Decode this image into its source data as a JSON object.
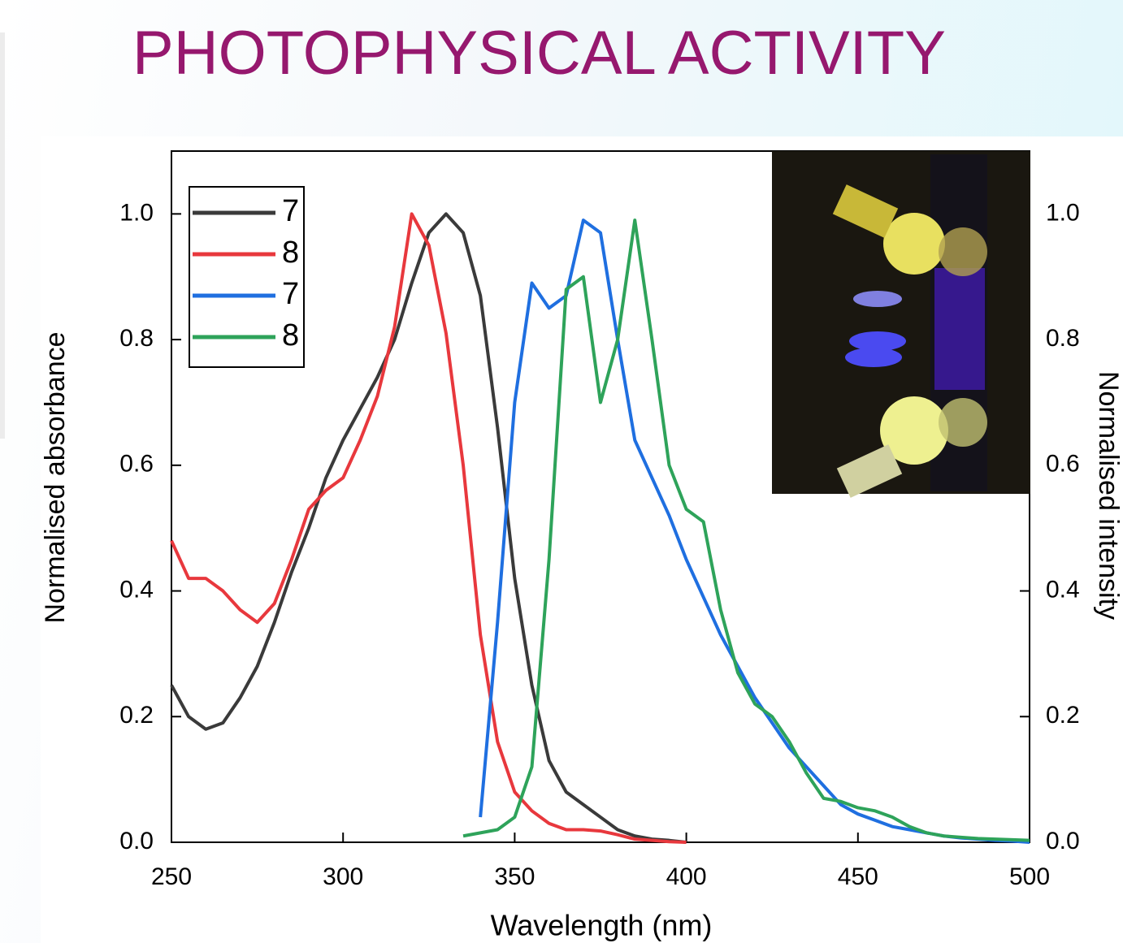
{
  "title": "PHOTOPHYSICAL ACTIVITY",
  "chart_data": {
    "type": "line",
    "xlabel": "Wavelength (nm)",
    "ylabel": "Normalised absorbance",
    "y2label": "Normalised intensity",
    "x": [
      250,
      255,
      260,
      265,
      270,
      275,
      280,
      285,
      290,
      295,
      300,
      305,
      310,
      315,
      320,
      325,
      330,
      335,
      340,
      345,
      350,
      355,
      360,
      365,
      370,
      375,
      380,
      385,
      390,
      395,
      400,
      405,
      410,
      415,
      420,
      425,
      430,
      435,
      440,
      445,
      450,
      455,
      460,
      465,
      470,
      475,
      480,
      485,
      490,
      495,
      500
    ],
    "series": [
      {
        "name": "7",
        "color": "#3a3a3a",
        "values": [
          0.25,
          0.2,
          0.18,
          0.19,
          0.23,
          0.28,
          0.35,
          0.43,
          0.5,
          0.58,
          0.64,
          0.69,
          0.74,
          0.8,
          0.89,
          0.97,
          1.0,
          0.97,
          0.87,
          0.66,
          0.42,
          0.25,
          0.13,
          0.08,
          0.06,
          0.04,
          0.02,
          0.01,
          0.005,
          0.003,
          0.0,
          null,
          null,
          null,
          null,
          null,
          null,
          null,
          null,
          null,
          null,
          null,
          null,
          null,
          null,
          null,
          null,
          null,
          null,
          null,
          null
        ]
      },
      {
        "name": "8",
        "color": "#e8383d",
        "values": [
          0.48,
          0.42,
          0.42,
          0.4,
          0.37,
          0.35,
          0.38,
          0.45,
          0.53,
          0.56,
          0.58,
          0.64,
          0.71,
          0.82,
          1.0,
          0.95,
          0.81,
          0.6,
          0.33,
          0.16,
          0.08,
          0.05,
          0.03,
          0.02,
          0.02,
          0.018,
          0.012,
          0.005,
          0.003,
          0.001,
          0.0,
          null,
          null,
          null,
          null,
          null,
          null,
          null,
          null,
          null,
          null,
          null,
          null,
          null,
          null,
          null,
          null,
          null,
          null,
          null,
          null
        ]
      },
      {
        "name": "7",
        "color": "#1f6fe0",
        "axis": "y2",
        "values": [
          null,
          null,
          null,
          null,
          null,
          null,
          null,
          null,
          null,
          null,
          null,
          null,
          null,
          null,
          null,
          null,
          null,
          null,
          0.04,
          0.35,
          0.7,
          0.89,
          0.85,
          0.87,
          0.99,
          0.97,
          0.8,
          0.64,
          0.58,
          0.52,
          0.45,
          0.39,
          0.33,
          0.28,
          0.23,
          0.19,
          0.15,
          0.12,
          0.09,
          0.06,
          0.045,
          0.035,
          0.025,
          0.02,
          0.015,
          0.01,
          0.007,
          0.005,
          0.003,
          0.002,
          0.0
        ]
      },
      {
        "name": "8",
        "color": "#2ea35a",
        "axis": "y2",
        "values": [
          null,
          null,
          null,
          null,
          null,
          null,
          null,
          null,
          null,
          null,
          null,
          null,
          null,
          null,
          null,
          null,
          null,
          0.01,
          0.015,
          0.02,
          0.04,
          0.12,
          0.45,
          0.88,
          0.9,
          0.7,
          0.8,
          0.99,
          0.8,
          0.6,
          0.53,
          0.51,
          0.37,
          0.27,
          0.22,
          0.2,
          0.16,
          0.11,
          0.07,
          0.065,
          0.055,
          0.05,
          0.04,
          0.025,
          0.015,
          0.01,
          0.008,
          0.006,
          0.005,
          0.004,
          0.003
        ]
      }
    ],
    "xlim": [
      250,
      500
    ],
    "xticks": [
      250,
      300,
      350,
      400,
      450,
      500
    ],
    "ylim": [
      0,
      1.1
    ],
    "yticks": [
      {
        "value": 0,
        "label": "0.0"
      },
      {
        "value": 0.2,
        "label": "0.2"
      },
      {
        "value": 0.4,
        "label": "0.4"
      },
      {
        "value": 0.6,
        "label": "0.6"
      },
      {
        "value": 0.8,
        "label": "0.8"
      },
      {
        "value": 1,
        "label": "1.0"
      }
    ],
    "y2lim": [
      0,
      1.1
    ],
    "y2ticks": [
      {
        "value": 0,
        "label": "0.0"
      },
      {
        "value": 0.2,
        "label": "0.2"
      },
      {
        "value": 0.4,
        "label": "0.4"
      },
      {
        "value": 0.6,
        "label": "0.6"
      },
      {
        "value": 0.8,
        "label": "0.8"
      },
      {
        "value": 1,
        "label": "1.0"
      }
    ],
    "legend": "upper left"
  }
}
